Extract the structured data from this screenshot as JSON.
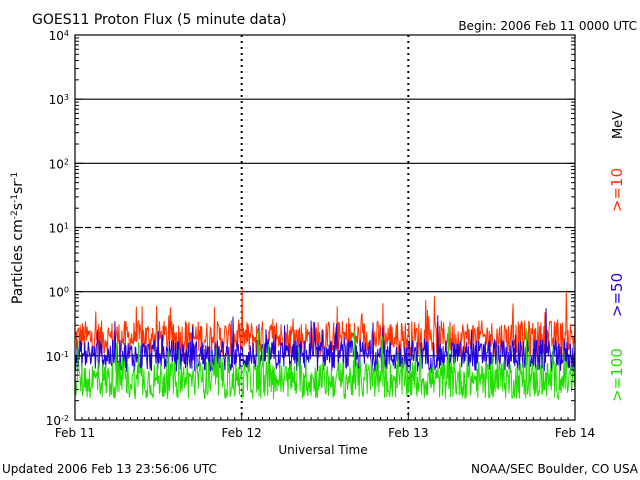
{
  "chart_data": {
    "type": "line",
    "title": "GOES11 Proton Flux (5 minute data)",
    "begin_label": "Begin: 2006 Feb 11 0000 UTC",
    "ylabel_parts": {
      "base": "Particles cm",
      "exp1": "-2",
      "mid1": "s",
      "exp2": "-1",
      "mid2": "sr",
      "exp3": "-1"
    },
    "xlabel": "Universal Time",
    "y_scale": "log",
    "ylim": [
      0.01,
      10000
    ],
    "y_ticks": [
      {
        "value": 0.01,
        "base": "10",
        "exp": "-2"
      },
      {
        "value": 0.1,
        "base": "10",
        "exp": "-1"
      },
      {
        "value": 1,
        "base": "10",
        "exp": "0"
      },
      {
        "value": 10,
        "base": "10",
        "exp": "1"
      },
      {
        "value": 100,
        "base": "10",
        "exp": "2"
      },
      {
        "value": 1000,
        "base": "10",
        "exp": "3"
      },
      {
        "value": 10000,
        "base": "10",
        "exp": "4"
      }
    ],
    "threshold_lines": [
      {
        "value": 1000,
        "style": "solid"
      },
      {
        "value": 100,
        "style": "solid"
      },
      {
        "value": 10,
        "style": "dashed"
      },
      {
        "value": 1,
        "style": "solid"
      },
      {
        "value": 0.1,
        "style": "solid"
      }
    ],
    "x_range_days": [
      0,
      3
    ],
    "x_ticks": [
      {
        "day": 0,
        "label": "Feb 11"
      },
      {
        "day": 1,
        "label": "Feb 12"
      },
      {
        "day": 2,
        "label": "Feb 13"
      },
      {
        "day": 3,
        "label": "Feb 14"
      }
    ],
    "series": [
      {
        "name": ">=10",
        "color": "#ff3300",
        "base": 0.19,
        "spread": 0.55
      },
      {
        "name": ">=50",
        "color": "#2200dd",
        "base": 0.1,
        "spread": 0.5
      },
      {
        "name": ">=100",
        "color": "#22dd00",
        "base": 0.042,
        "spread": 0.6
      }
    ],
    "legend_unit": "MeV",
    "legend_placement": "right"
  },
  "footer": {
    "updated": "Updated 2006 Feb 13 23:56:06 UTC",
    "credit": "NOAA/SEC Boulder, CO USA"
  }
}
